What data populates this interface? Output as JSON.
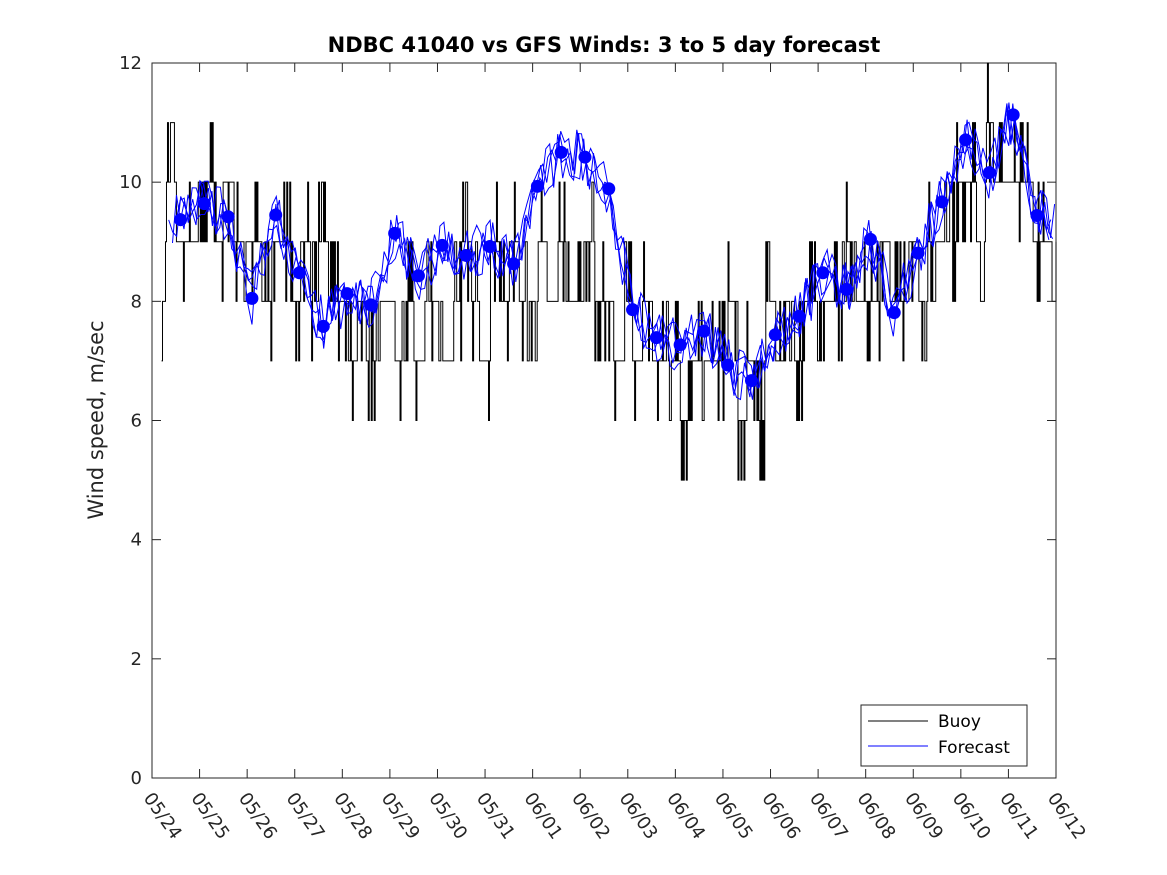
{
  "chart_data": {
    "type": "line",
    "title": "NDBC 41040 vs GFS Winds: 3 to 5 day forecast",
    "xlabel": "",
    "ylabel": "Wind speed, m/sec",
    "ylim": [
      0,
      12
    ],
    "y_ticks": [
      0,
      2,
      4,
      6,
      8,
      10,
      12
    ],
    "x_range": [
      "05/24",
      "06/12"
    ],
    "x_ticks": [
      "05/24",
      "05/25",
      "05/26",
      "05/27",
      "05/28",
      "05/29",
      "05/30",
      "05/31",
      "06/01",
      "06/02",
      "06/03",
      "06/04",
      "06/05",
      "06/06",
      "06/07",
      "06/08",
      "06/09",
      "06/10",
      "06/11",
      "06/12"
    ],
    "grid": false,
    "legend": {
      "position": "bottom-right",
      "entries": [
        "Buoy",
        "Forecast"
      ]
    },
    "colors": {
      "buoy": "#000000",
      "forecast": "#0000ff"
    },
    "series": [
      {
        "name": "Buoy",
        "style": "step-line",
        "x": [
          "05/24",
          "05/24.2",
          "05/24.4",
          "05/24.6",
          "05/24.8",
          "05/25",
          "05/25.2",
          "05/25.4",
          "05/25.6",
          "05/25.8",
          "05/26",
          "05/26.2",
          "05/26.4",
          "05/26.6",
          "05/26.8",
          "05/27",
          "05/27.2",
          "05/27.4",
          "05/27.6",
          "05/27.8",
          "05/28",
          "05/28.2",
          "05/28.4",
          "05/28.6",
          "05/28.8",
          "05/29",
          "05/29.2",
          "05/29.4",
          "05/29.6",
          "05/29.8",
          "05/30",
          "05/30.2",
          "05/30.4",
          "05/30.6",
          "05/30.8",
          "05/31",
          "05/31.2",
          "05/31.4",
          "05/31.6",
          "05/31.8",
          "06/01",
          "06/01.2",
          "06/01.4",
          "06/01.6",
          "06/01.8",
          "06/02",
          "06/02.2",
          "06/02.4",
          "06/02.6",
          "06/02.8",
          "06/03",
          "06/03.2",
          "06/03.4",
          "06/03.6",
          "06/03.8",
          "06/04",
          "06/04.2",
          "06/04.4",
          "06/04.6",
          "06/04.8",
          "06/05",
          "06/05.2",
          "06/05.4",
          "06/05.6",
          "06/05.8",
          "06/06",
          "06/06.2",
          "06/06.4",
          "06/06.6",
          "06/06.8",
          "06/07",
          "06/07.2",
          "06/07.4",
          "06/07.6",
          "06/07.8",
          "06/08",
          "06/08.2",
          "06/08.4",
          "06/08.6",
          "06/08.8",
          "06/09",
          "06/09.2",
          "06/09.4",
          "06/09.6",
          "06/09.8",
          "06/10",
          "06/10.2",
          "06/10.4",
          "06/10.6",
          "06/10.8",
          "06/11",
          "06/11.2",
          "06/11.4",
          "06/11.6",
          "06/11.8",
          "06/12"
        ],
        "values": [
          9,
          8,
          10,
          9,
          9,
          9,
          10,
          9,
          10,
          9,
          9,
          9,
          8,
          9,
          9,
          8,
          9,
          8,
          9,
          8,
          8,
          7,
          8,
          7,
          8,
          8,
          7,
          8,
          7,
          8,
          8,
          7,
          8,
          9,
          8,
          7,
          9,
          8,
          9,
          8,
          8,
          9,
          8,
          9,
          8,
          8,
          9,
          8,
          8,
          7,
          8,
          7,
          8,
          7,
          7,
          7,
          6,
          7,
          7,
          7,
          7,
          8,
          6,
          7,
          6,
          8,
          7,
          8,
          7,
          8,
          8,
          8,
          8,
          9,
          8,
          8,
          8,
          9,
          8,
          8,
          9,
          8,
          9,
          9,
          9,
          10,
          10,
          9,
          11,
          10,
          10,
          10,
          10,
          9,
          9,
          8
        ]
      },
      {
        "name": "Forecast",
        "style": "lines",
        "x": [
          0.6,
          1.1,
          1.6,
          2.1,
          2.6,
          3.1,
          3.6,
          4.1,
          4.6,
          5.1,
          5.6,
          6.1,
          6.6,
          7.1,
          7.6,
          8.1,
          8.6,
          9.1,
          9.6,
          10.1,
          10.6,
          11.1,
          11.6,
          12.1,
          12.6,
          13.1,
          13.6,
          14.1,
          14.6,
          15.1,
          15.6,
          16.1,
          16.6,
          17.1,
          17.6,
          18.1,
          18.6
        ],
        "values": [
          9.37,
          9.64,
          9.42,
          8.05,
          9.45,
          8.48,
          7.58,
          8.13,
          7.94,
          9.14,
          8.43,
          8.94,
          8.77,
          8.92,
          8.63,
          9.93,
          10.5,
          10.42,
          9.89,
          7.86,
          7.39,
          7.27,
          7.5,
          6.93,
          6.67,
          7.44,
          7.75,
          8.48,
          8.2,
          9.04,
          7.81,
          8.81,
          9.67,
          10.71,
          10.16,
          11.13,
          9.44
        ]
      }
    ]
  }
}
